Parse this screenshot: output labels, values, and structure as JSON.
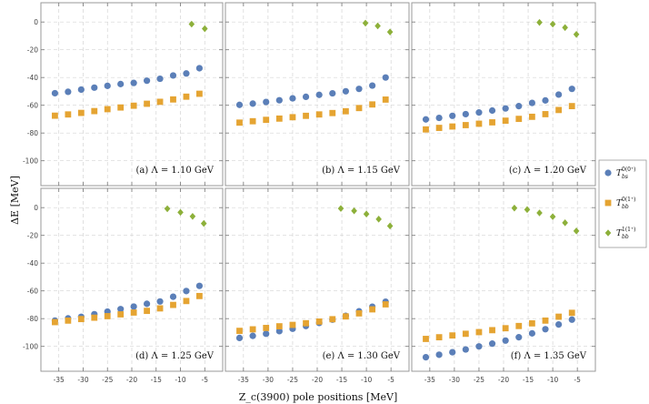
{
  "chart_data": {
    "type": "scatter",
    "x_label": "Z_c(3900) pole positions [MeV]",
    "y_label": "ΔE [MeV]",
    "xlim": [
      -37,
      -3
    ],
    "ylim": [
      -112,
      8
    ],
    "x_ticks": [
      -35,
      -30,
      -25,
      -20,
      -15,
      -10,
      -5
    ],
    "y_ticks": [
      0,
      -20,
      -40,
      -60,
      -80,
      -100
    ],
    "colors": {
      "bs": "#5b7fb8",
      "bb0": "#e5a432",
      "bb1": "#8db03a"
    },
    "legend": [
      {
        "key": "bs",
        "sym": "T",
        "sub": "bs",
        "sup": "0(0⁺)",
        "marker": "circle"
      },
      {
        "key": "bb0",
        "sym": "T",
        "sub": "bb",
        "sup": "0(1⁺)",
        "marker": "square"
      },
      {
        "key": "bb1",
        "sym": "T",
        "sub": "bb",
        "sup": "1(1⁺)",
        "marker": "diamond"
      }
    ],
    "panels": [
      {
        "label": "(a) Λ = 1.10 GeV",
        "series": [
          {
            "key": "bs",
            "x": [
              -35.8,
              -33.1,
              -30.4,
              -27.7,
              -25.0,
              -22.3,
              -19.6,
              -16.9,
              -14.2,
              -11.5,
              -8.8,
              -6.1
            ],
            "y": [
              -51.3,
              -50.3,
              -48.7,
              -47.3,
              -46.0,
              -44.7,
              -43.9,
              -42.3,
              -40.9,
              -38.5,
              -37.1,
              -33.3
            ]
          },
          {
            "key": "bb0",
            "x": [
              -35.8,
              -33.1,
              -30.4,
              -27.7,
              -25.0,
              -22.3,
              -19.6,
              -16.9,
              -14.2,
              -11.5,
              -8.8,
              -6.1
            ],
            "y": [
              -67.5,
              -66.6,
              -65.5,
              -64.2,
              -62.8,
              -61.6,
              -60.3,
              -58.9,
              -57.5,
              -55.8,
              -53.8,
              -51.7
            ]
          },
          {
            "key": "bb1",
            "x": [
              -7.7,
              -5.0
            ],
            "y": [
              -1.5,
              -4.8
            ]
          }
        ]
      },
      {
        "label": "(b) Λ = 1.15 GeV",
        "series": [
          {
            "key": "bs",
            "x": [
              -35.8,
              -33.1,
              -30.4,
              -27.7,
              -25.0,
              -22.3,
              -19.6,
              -16.9,
              -14.2,
              -11.5,
              -8.8,
              -6.1
            ],
            "y": [
              -59.7,
              -58.8,
              -57.6,
              -56.4,
              -55.0,
              -53.9,
              -52.5,
              -51.4,
              -49.9,
              -48.2,
              -45.8,
              -40.0
            ]
          },
          {
            "key": "bb0",
            "x": [
              -35.8,
              -33.1,
              -30.4,
              -27.7,
              -25.0,
              -22.3,
              -19.6,
              -16.9,
              -14.2,
              -11.5,
              -8.8,
              -6.1
            ],
            "y": [
              -72.5,
              -71.5,
              -70.5,
              -69.6,
              -68.6,
              -67.6,
              -66.6,
              -65.6,
              -64.3,
              -62.0,
              -59.4,
              -55.9
            ]
          },
          {
            "key": "bb1",
            "x": [
              -10.2,
              -7.7,
              -5.2
            ],
            "y": [
              -0.8,
              -2.8,
              -7.2
            ]
          }
        ]
      },
      {
        "label": "(c) Λ = 1.20 GeV",
        "series": [
          {
            "key": "bs",
            "x": [
              -35.8,
              -33.1,
              -30.4,
              -27.7,
              -25.0,
              -22.3,
              -19.6,
              -16.9,
              -14.2,
              -11.5,
              -8.8,
              -6.1
            ],
            "y": [
              -70.2,
              -69.1,
              -67.6,
              -66.4,
              -65.2,
              -63.8,
              -62.3,
              -60.6,
              -58.3,
              -56.5,
              -52.3,
              -48.2
            ]
          },
          {
            "key": "bb0",
            "x": [
              -35.8,
              -33.1,
              -30.4,
              -27.7,
              -25.0,
              -22.3,
              -19.6,
              -16.9,
              -14.2,
              -11.5,
              -8.8,
              -6.1
            ],
            "y": [
              -77.4,
              -76.3,
              -75.3,
              -74.3,
              -73.3,
              -72.3,
              -71.1,
              -69.8,
              -68.3,
              -66.4,
              -63.4,
              -60.6
            ]
          },
          {
            "key": "bb1",
            "x": [
              -12.7,
              -10.0,
              -7.5,
              -5.2
            ],
            "y": [
              -0.3,
              -1.5,
              -4.0,
              -8.9
            ]
          }
        ]
      },
      {
        "label": "(d) Λ = 1.25 GeV",
        "series": [
          {
            "key": "bs",
            "x": [
              -35.8,
              -33.1,
              -30.4,
              -27.7,
              -25.0,
              -22.3,
              -19.6,
              -16.9,
              -14.2,
              -11.5,
              -8.8,
              -6.1
            ],
            "y": [
              -81.4,
              -79.8,
              -78.7,
              -76.8,
              -74.9,
              -73.1,
              -71.3,
              -69.3,
              -67.6,
              -64.2,
              -60.1,
              -56.4
            ]
          },
          {
            "key": "bb0",
            "x": [
              -35.8,
              -33.1,
              -30.4,
              -27.7,
              -25.0,
              -22.3,
              -19.6,
              -16.9,
              -14.2,
              -11.5,
              -8.8,
              -6.1
            ],
            "y": [
              -82.5,
              -81.4,
              -80.3,
              -79.3,
              -78.2,
              -76.9,
              -75.6,
              -74.4,
              -72.6,
              -70.1,
              -67.3,
              -63.7
            ]
          },
          {
            "key": "bb1",
            "x": [
              -12.7,
              -10.0,
              -7.5,
              -5.2
            ],
            "y": [
              -0.8,
              -3.4,
              -6.3,
              -11.4
            ]
          }
        ]
      },
      {
        "label": "(e) Λ = 1.30 GeV",
        "series": [
          {
            "key": "bs",
            "x": [
              -35.8,
              -33.1,
              -30.4,
              -27.7,
              -25.0,
              -22.3,
              -19.6,
              -16.9,
              -14.2,
              -11.5,
              -8.8,
              -6.1
            ],
            "y": [
              -93.9,
              -92.4,
              -90.9,
              -89.0,
              -87.3,
              -85.3,
              -83.1,
              -80.7,
              -78.0,
              -74.7,
              -71.4,
              -67.8
            ]
          },
          {
            "key": "bb0",
            "x": [
              -35.8,
              -33.1,
              -30.4,
              -27.7,
              -25.0,
              -22.3,
              -19.6,
              -16.9,
              -14.2,
              -11.5,
              -8.8,
              -6.1
            ],
            "y": [
              -88.8,
              -87.7,
              -86.7,
              -85.5,
              -84.5,
              -83.3,
              -82.1,
              -80.4,
              -78.4,
              -76.2,
              -73.3,
              -69.7
            ]
          },
          {
            "key": "bb1",
            "x": [
              -15.2,
              -12.5,
              -10.0,
              -7.5,
              -5.2
            ],
            "y": [
              -0.6,
              -2.3,
              -4.6,
              -8.3,
              -13.2
            ]
          }
        ]
      },
      {
        "label": "(f) Λ = 1.35 GeV",
        "series": [
          {
            "key": "bs",
            "x": [
              -35.8,
              -33.1,
              -30.4,
              -27.7,
              -25.0,
              -22.3,
              -19.6,
              -16.9,
              -14.2,
              -11.5,
              -8.8,
              -6.1
            ],
            "y": [
              -107.8,
              -106.0,
              -104.2,
              -102.2,
              -100.0,
              -98.0,
              -95.8,
              -93.4,
              -90.6,
              -87.6,
              -84.2,
              -80.7
            ]
          },
          {
            "key": "bb0",
            "x": [
              -35.8,
              -33.1,
              -30.4,
              -27.7,
              -25.0,
              -22.3,
              -19.6,
              -16.9,
              -14.2,
              -11.5,
              -8.8,
              -6.1
            ],
            "y": [
              -94.6,
              -93.4,
              -92.1,
              -90.9,
              -89.7,
              -88.3,
              -86.9,
              -85.3,
              -83.4,
              -81.4,
              -78.6,
              -75.8
            ]
          },
          {
            "key": "bb1",
            "x": [
              -17.8,
              -15.2,
              -12.7,
              -10.0,
              -7.5,
              -5.2
            ],
            "y": [
              -0.3,
              -1.4,
              -3.8,
              -6.5,
              -10.9,
              -16.8
            ]
          }
        ]
      }
    ]
  }
}
